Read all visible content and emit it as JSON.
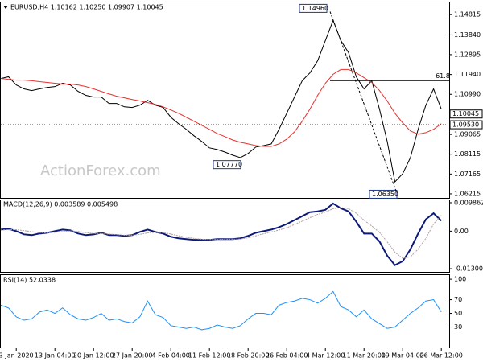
{
  "chart_data": [
    {
      "type": "line",
      "title": "EURUSD,H4  1.10162 1.10250 1.09907 1.10045",
      "watermark": "ActionForex.com",
      "x": [
        null,
        null,
        "3 Jan 2020",
        null,
        null,
        null,
        null,
        "13 Jan 04:00",
        null,
        null,
        null,
        null,
        "20 Jan 12:00",
        null,
        null,
        null,
        null,
        "27 Jan 20:00",
        null,
        null,
        null,
        null,
        "4 Feb 04:00",
        null,
        null,
        null,
        null,
        "11 Feb 12:00",
        null,
        null,
        null,
        null,
        "18 Feb 20:00",
        null,
        null,
        null,
        null,
        "26 Feb 04:00",
        null,
        null,
        null,
        null,
        "4 Mar 12:00",
        null,
        null,
        null,
        null,
        "11 Mar 20:00",
        null,
        null,
        null,
        null,
        "19 Mar 04:00",
        null,
        null,
        null,
        null,
        "26 Mar 12:00"
      ],
      "series": [
        {
          "name": "EURUSD",
          "color": "#000000",
          "values": [
            1.1175,
            1.1183,
            1.1144,
            1.1125,
            1.1117,
            1.1125,
            1.1132,
            1.1136,
            1.1152,
            1.1144,
            1.1113,
            1.1094,
            1.1086,
            1.1086,
            1.1055,
            1.1055,
            1.1039,
            1.1036,
            1.1047,
            1.107,
            1.1047,
            1.1036,
            1.0989,
            1.0958,
            1.0931,
            1.09,
            1.0873,
            1.0842,
            1.0834,
            1.0822,
            1.0807,
            1.0795,
            1.0815,
            1.0846,
            1.0853,
            1.0861,
            1.0931,
            1.1008,
            1.1086,
            1.1164,
            1.1202,
            1.126,
            1.1357,
            1.1454,
            1.1357,
            1.1299,
            1.1183,
            1.1125,
            1.1164,
            1.1028,
            1.0873,
            1.0679,
            1.0718,
            1.0795,
            1.0931,
            1.1047,
            1.1125,
            1.1028
          ]
        },
        {
          "name": "MA",
          "color": "#e8312f",
          "values": [
            1.1175,
            1.1171,
            1.1167,
            1.1167,
            1.1164,
            1.116,
            1.1156,
            1.1152,
            1.1148,
            1.1148,
            1.1144,
            1.1136,
            1.1125,
            1.1113,
            1.1101,
            1.109,
            1.1082,
            1.1074,
            1.1067,
            1.1059,
            1.1051,
            1.1039,
            1.1024,
            1.1008,
            1.0989,
            1.097,
            1.095,
            1.0931,
            1.0911,
            1.0896,
            1.088,
            1.0869,
            1.0861,
            1.0853,
            1.0849,
            1.0849,
            1.0861,
            1.0884,
            1.0919,
            1.097,
            1.1028,
            1.1094,
            1.1152,
            1.1195,
            1.1218,
            1.1218,
            1.1202,
            1.1179,
            1.1156,
            1.1117,
            1.1067,
            1.1008,
            1.0962,
            1.0923,
            1.0908,
            1.0915,
            1.0931,
            1.0958
          ]
        }
      ],
      "ylim": [
        1.0602,
        1.154
      ],
      "yticks": [
        1.14815,
        {
          "value": 1.1384,
          "label": "1.13840"
        },
        1.12895,
        {
          "value": 1.1194,
          "label": "1.11940"
        },
        {
          "value": 1.1099,
          "label": "1.10990"
        },
        1.09065,
        1.08115,
        1.07165,
        1.06215
      ],
      "price_labels": [
        {
          "value": 1.10045,
          "label": "1.10045"
        },
        {
          "value": 1.0953,
          "label": "1.09530"
        }
      ],
      "annotations": [
        {
          "value": 1.1496,
          "label": "1.14960"
        },
        {
          "value": 1.0777,
          "label": "1.07770"
        },
        {
          "value": 1.0635,
          "label": "1.06350"
        }
      ],
      "fib": {
        "label": "61.8",
        "value": 1.1164
      }
    },
    {
      "type": "line",
      "title": "MACD(12,26,9) 0.003589 0.005498",
      "series": [
        {
          "name": "MACD",
          "color": "#0d1a7a",
          "values": [
            0.00055,
            0.00082,
            0,
            -0.0011,
            -0.00137,
            -0.00082,
            -0.00055,
            0,
            0.00055,
            0.00027,
            -0.00082,
            -0.00137,
            -0.0011,
            -0.00055,
            -0.00137,
            -0.00137,
            -0.00164,
            -0.00137,
            -0.00027,
            0.00055,
            -0.00027,
            -0.00082,
            -0.00192,
            -0.00247,
            -0.00274,
            -0.00301,
            -0.00301,
            -0.00301,
            -0.00274,
            -0.00274,
            -0.00274,
            -0.00247,
            -0.00164,
            -0.00055,
            0,
            0.00055,
            0.00137,
            0.00247,
            0.00384,
            0.00521,
            0.00658,
            0.00685,
            0.0074,
            0.00959,
            0.00795,
            0.00685,
            0.00329,
            -0.00082,
            -0.00082,
            -0.00356,
            -0.00849,
            -0.01178,
            -0.01041,
            -0.0063,
            -0.00082,
            0.00411,
            0.0062,
            0.0036
          ]
        },
        {
          "name": "Signal",
          "color": "#b0a0a0",
          "values": [
            0.0004,
            0.0005,
            0.0005,
            0.0002,
            -0.0002,
            -0.0005,
            -0.0006,
            -0.0004,
            -0.0001,
            0.0001,
            -0.0001,
            -0.0005,
            -0.0008,
            -0.0008,
            -0.001,
            -0.0012,
            -0.0014,
            -0.0014,
            -0.0011,
            -0.0006,
            -0.0004,
            -0.0005,
            -0.001,
            -0.0016,
            -0.0021,
            -0.0025,
            -0.0028,
            -0.0029,
            -0.0029,
            -0.0028,
            -0.0028,
            -0.0027,
            -0.0023,
            -0.0016,
            -0.0009,
            -0.0003,
            0.0004,
            0.0012,
            0.0023,
            0.0035,
            0.0047,
            0.0058,
            0.0066,
            0.0078,
            0.0082,
            0.0078,
            0.0062,
            0.0038,
            0.0018,
            -0.0004,
            -0.0037,
            -0.0073,
            -0.0094,
            -0.0089,
            -0.0062,
            -0.0025,
            0.0025,
            0.0055
          ]
        }
      ],
      "ylim": [
        -0.0141,
        0.01069
      ],
      "yticks": [
        0.009862,
        {
          "value": 0,
          "label": "0.00"
        },
        -0.013002
      ]
    },
    {
      "type": "line",
      "title": "RSI(14) 52.0338",
      "series": [
        {
          "name": "RSI",
          "color": "#1e90ff",
          "values": [
            62,
            58,
            45,
            40,
            42,
            52,
            55,
            50,
            58,
            48,
            42,
            40,
            44,
            50,
            40,
            42,
            38,
            36,
            45,
            68,
            48,
            44,
            32,
            30,
            28,
            30,
            26,
            28,
            33,
            30,
            28,
            32,
            42,
            50,
            50,
            48,
            62,
            66,
            68,
            72,
            70,
            65,
            72,
            82,
            60,
            55,
            45,
            55,
            42,
            35,
            28,
            30,
            40,
            50,
            58,
            68,
            70,
            52
          ]
        }
      ],
      "ylim": [
        0,
        106
      ],
      "yticks": [
        100,
        70,
        50,
        30
      ]
    }
  ]
}
